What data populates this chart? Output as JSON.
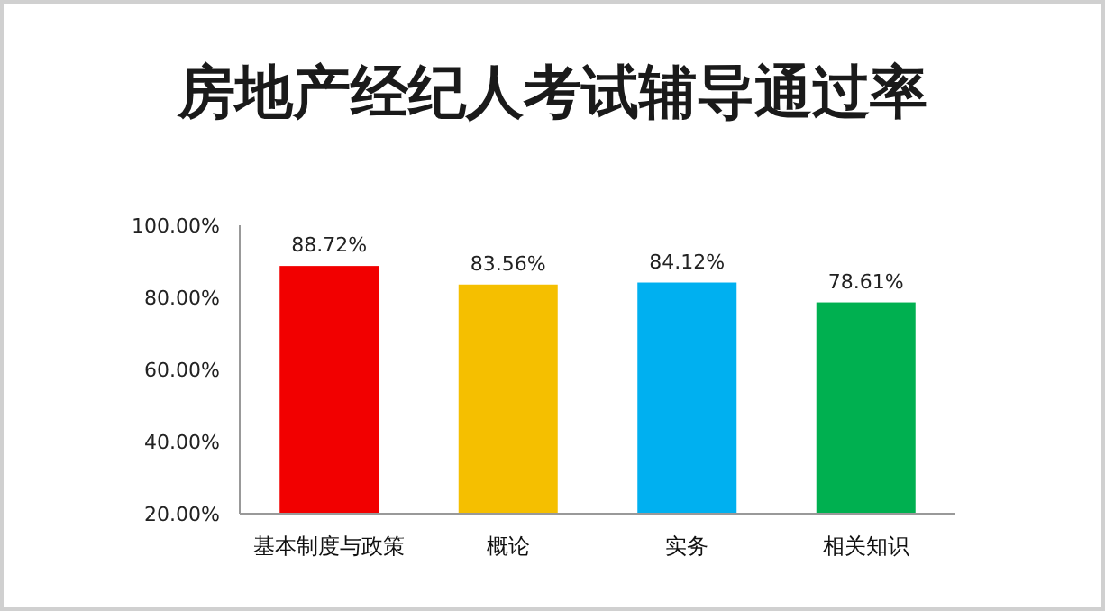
{
  "chart_data": {
    "type": "bar",
    "title": "房地产经纪人考试辅导通过率",
    "categories": [
      "基本制度与政策",
      "概论",
      "实务",
      "相关知识"
    ],
    "values": [
      88.72,
      83.56,
      84.12,
      78.61
    ],
    "colors": [
      "#f20000",
      "#f5bf00",
      "#00b0f0",
      "#00b050"
    ],
    "value_labels": [
      "88.72%",
      "83.56%",
      "84.12%",
      "78.61%"
    ],
    "ylim": [
      20,
      100
    ],
    "yticks": [
      {
        "value": 20,
        "label": "20.00%"
      },
      {
        "value": 40,
        "label": "40.00%"
      },
      {
        "value": 60,
        "label": "60.00%"
      },
      {
        "value": 80,
        "label": "80.00%"
      },
      {
        "value": 100,
        "label": "100.00%"
      }
    ],
    "grid": false
  }
}
